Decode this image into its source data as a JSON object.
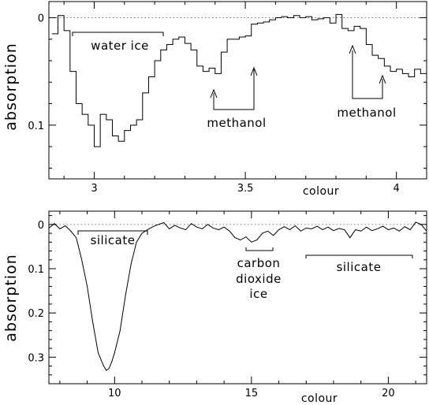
{
  "chart_data": [
    {
      "type": "line",
      "step": true,
      "ylabel": "absorption",
      "xlabel": "colour",
      "xlim": [
        2.85,
        4.1
      ],
      "ylim": [
        0.15,
        -0.015
      ],
      "inverted_y": true,
      "xticks": [
        3,
        3.5,
        4
      ],
      "xtick_labels": [
        "3",
        "3.5",
        "4"
      ],
      "yticks": [
        0,
        0.1
      ],
      "ytick_labels": [
        "0",
        "0.1"
      ],
      "zero_line": true,
      "x": [
        2.87,
        2.89,
        2.91,
        2.93,
        2.95,
        2.97,
        2.99,
        3.01,
        3.03,
        3.05,
        3.07,
        3.09,
        3.11,
        3.13,
        3.15,
        3.17,
        3.19,
        3.21,
        3.23,
        3.25,
        3.27,
        3.29,
        3.31,
        3.33,
        3.35,
        3.37,
        3.39,
        3.41,
        3.43,
        3.45,
        3.47,
        3.49,
        3.51,
        3.53,
        3.55,
        3.57,
        3.59,
        3.61,
        3.63,
        3.65,
        3.67,
        3.69,
        3.71,
        3.73,
        3.75,
        3.77,
        3.79,
        3.81,
        3.83,
        3.85,
        3.87,
        3.89,
        3.91,
        3.93,
        3.95,
        3.97,
        3.99,
        4.01,
        4.03,
        4.05,
        4.07,
        4.09
      ],
      "values": [
        0.015,
        -0.002,
        0.012,
        0.05,
        0.08,
        0.09,
        0.1,
        0.12,
        0.09,
        0.095,
        0.11,
        0.115,
        0.105,
        0.1,
        0.095,
        0.07,
        0.055,
        0.04,
        0.03,
        0.025,
        0.02,
        0.018,
        0.024,
        0.03,
        0.045,
        0.05,
        0.047,
        0.052,
        0.032,
        0.02,
        0.02,
        0.018,
        0.017,
        0.006,
        0.005,
        0.004,
        0.002,
        0.0,
        -0.001,
        0.0,
        -0.002,
        0.0,
        -0.001,
        0.002,
        0.001,
        0.0,
        0.005,
        -0.003,
        0.01,
        0.012,
        0.008,
        0.01,
        0.025,
        0.035,
        0.038,
        0.045,
        0.05,
        0.048,
        0.052,
        0.055,
        0.048,
        0.052
      ],
      "annotations": [
        {
          "text": "water ice",
          "x_range": [
            2.91,
            3.22
          ],
          "y": 0.008
        },
        {
          "text": "methanol",
          "x_range": [
            3.4,
            3.52
          ],
          "y": 0.078
        },
        {
          "text": "methanol",
          "x_range": [
            3.86,
            3.94
          ],
          "y": 0.068
        }
      ]
    },
    {
      "type": "line",
      "ylabel": "absorption",
      "xlabel": "colour",
      "xlim": [
        7.6,
        21.4
      ],
      "ylim": [
        0.36,
        -0.03
      ],
      "inverted_y": true,
      "xticks": [
        10,
        15,
        20
      ],
      "xtick_labels": [
        "10",
        "15",
        "20"
      ],
      "yticks": [
        0,
        0.1,
        0.2,
        0.3
      ],
      "ytick_labels": [
        "0",
        "0.1",
        "0.2",
        "0.3"
      ],
      "zero_line": true,
      "x": [
        7.6,
        7.8,
        8.0,
        8.2,
        8.4,
        8.6,
        8.8,
        9.0,
        9.2,
        9.4,
        9.6,
        9.7,
        9.8,
        9.9,
        10.0,
        10.2,
        10.4,
        10.6,
        10.8,
        11.0,
        11.2,
        11.4,
        11.6,
        11.8,
        12.0,
        12.2,
        12.4,
        12.6,
        12.8,
        13.0,
        13.2,
        13.4,
        13.6,
        13.8,
        14.0,
        14.2,
        14.4,
        14.6,
        14.8,
        15.0,
        15.2,
        15.4,
        15.6,
        15.8,
        16.0,
        16.2,
        16.4,
        16.6,
        16.8,
        17.0,
        17.2,
        17.4,
        17.6,
        17.8,
        18.0,
        18.2,
        18.4,
        18.6,
        18.8,
        19.0,
        19.2,
        19.4,
        19.6,
        19.8,
        20.0,
        20.2,
        20.4,
        20.6,
        20.8,
        21.0,
        21.2,
        21.4
      ],
      "values": [
        0.008,
        -0.002,
        0.01,
        0.003,
        0.015,
        0.03,
        0.08,
        0.14,
        0.22,
        0.29,
        0.32,
        0.33,
        0.325,
        0.31,
        0.29,
        0.24,
        0.16,
        0.09,
        0.04,
        0.02,
        0.012,
        0.005,
        0.0,
        -0.004,
        0.01,
        0.002,
        0.008,
        0.012,
        -0.002,
        0.006,
        0.01,
        0.0,
        0.008,
        0.012,
        0.006,
        0.015,
        0.03,
        0.035,
        0.028,
        0.04,
        0.035,
        0.02,
        0.015,
        0.025,
        0.012,
        0.005,
        0.012,
        0.003,
        0.015,
        0.008,
        0.01,
        0.004,
        0.012,
        0.006,
        0.014,
        0.009,
        0.012,
        0.03,
        0.012,
        0.015,
        0.006,
        0.014,
        0.01,
        0.004,
        0.012,
        0.008,
        0.015,
        0.005,
        0.012,
        -0.005,
        0.0,
        0.015
      ],
      "annotations": [
        {
          "text": "silicate",
          "x_range": [
            8.6,
            11.1
          ],
          "y": 0.01
        },
        {
          "text": "carbon",
          "x_range": [
            14.8,
            15.8
          ],
          "y": 0.055
        },
        {
          "text": "dioxide",
          "x_range": [
            14.8,
            15.8
          ],
          "y": 0.075
        },
        {
          "text": "ice",
          "x_range": [
            14.8,
            15.8
          ],
          "y": 0.095
        },
        {
          "text": "silicate",
          "x_range": [
            17.0,
            21.0
          ],
          "y": 0.07
        }
      ]
    }
  ]
}
